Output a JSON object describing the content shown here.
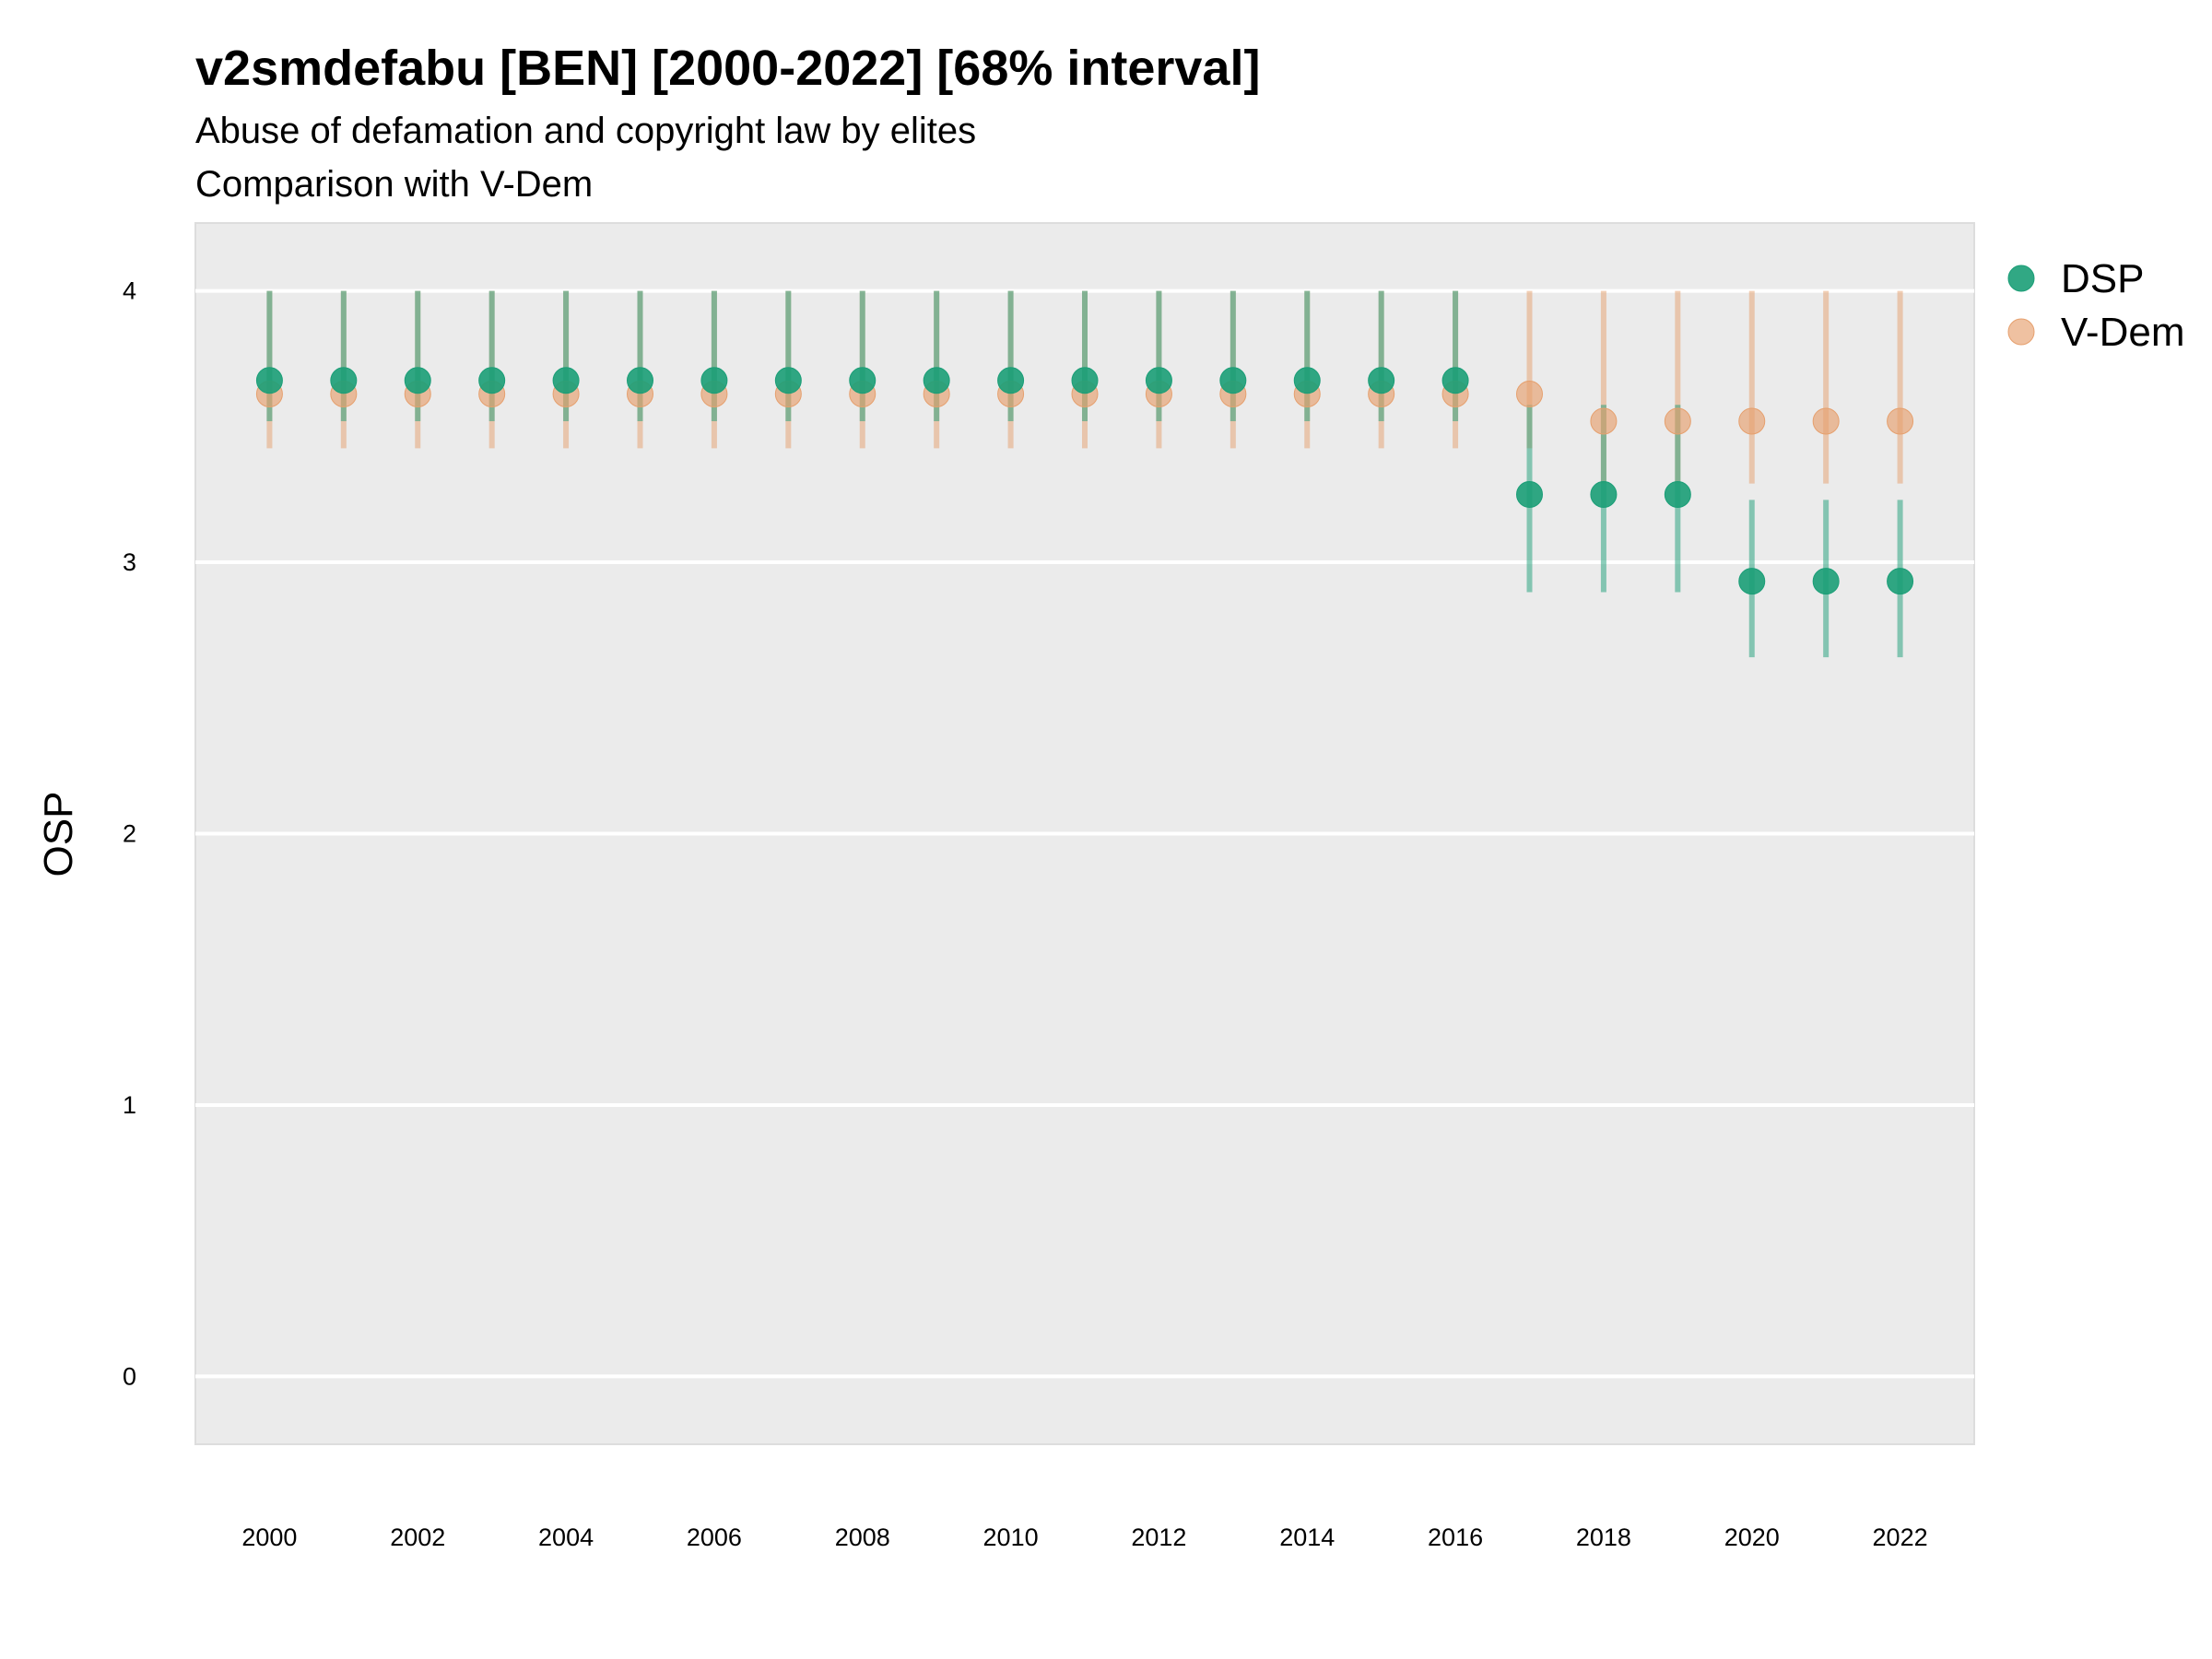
{
  "chart_data": {
    "type": "scatter",
    "title": "v2smdefabu [BEN] [2000-2022] [68% interval]",
    "subtitle_lines": [
      "Abuse of defamation and copyright law by elites",
      "Comparison with V-Dem"
    ],
    "ylabel": "OSP",
    "xlabel": "",
    "ylim": [
      -0.25,
      4.25
    ],
    "xlim": [
      1999.0,
      2023.0
    ],
    "yticks": [
      "0",
      "1",
      "2",
      "3",
      "4"
    ],
    "xticks": [
      "2000",
      "2002",
      "2004",
      "2006",
      "2008",
      "2010",
      "2012",
      "2014",
      "2016",
      "2018",
      "2020",
      "2022"
    ],
    "grid": true,
    "legend_position": "right",
    "x": [
      2000,
      2001,
      2002,
      2003,
      2004,
      2005,
      2006,
      2007,
      2008,
      2009,
      2010,
      2011,
      2012,
      2013,
      2014,
      2015,
      2016,
      2017,
      2018,
      2019,
      2020,
      2021,
      2022
    ],
    "series": [
      {
        "name": "DSP",
        "color": "#1b9e77",
        "values": [
          3.67,
          3.67,
          3.67,
          3.67,
          3.67,
          3.67,
          3.67,
          3.67,
          3.67,
          3.67,
          3.67,
          3.67,
          3.67,
          3.67,
          3.67,
          3.67,
          3.67,
          3.25,
          3.25,
          3.25,
          2.93,
          2.93,
          2.93
        ],
        "lower": [
          3.52,
          3.52,
          3.52,
          3.52,
          3.52,
          3.52,
          3.52,
          3.52,
          3.52,
          3.52,
          3.52,
          3.52,
          3.52,
          3.52,
          3.52,
          3.52,
          3.52,
          2.89,
          2.89,
          2.89,
          2.65,
          2.65,
          2.65
        ],
        "upper": [
          4.0,
          4.0,
          4.0,
          4.0,
          4.0,
          4.0,
          4.0,
          4.0,
          4.0,
          4.0,
          4.0,
          4.0,
          4.0,
          4.0,
          4.0,
          4.0,
          4.0,
          3.58,
          3.58,
          3.58,
          3.23,
          3.23,
          3.23
        ]
      },
      {
        "name": "V-Dem",
        "color": "#e6a06e",
        "values": [
          3.62,
          3.62,
          3.62,
          3.62,
          3.62,
          3.62,
          3.62,
          3.62,
          3.62,
          3.62,
          3.62,
          3.62,
          3.62,
          3.62,
          3.62,
          3.62,
          3.62,
          3.62,
          3.52,
          3.52,
          3.52,
          3.52,
          3.52
        ],
        "lower": [
          3.42,
          3.42,
          3.42,
          3.42,
          3.42,
          3.42,
          3.42,
          3.42,
          3.42,
          3.42,
          3.42,
          3.42,
          3.42,
          3.42,
          3.42,
          3.42,
          3.42,
          3.42,
          3.29,
          3.29,
          3.29,
          3.29,
          3.29
        ],
        "upper": [
          4.0,
          4.0,
          4.0,
          4.0,
          4.0,
          4.0,
          4.0,
          4.0,
          4.0,
          4.0,
          4.0,
          4.0,
          4.0,
          4.0,
          4.0,
          4.0,
          4.0,
          4.0,
          4.0,
          4.0,
          4.0,
          4.0,
          4.0
        ]
      }
    ]
  }
}
